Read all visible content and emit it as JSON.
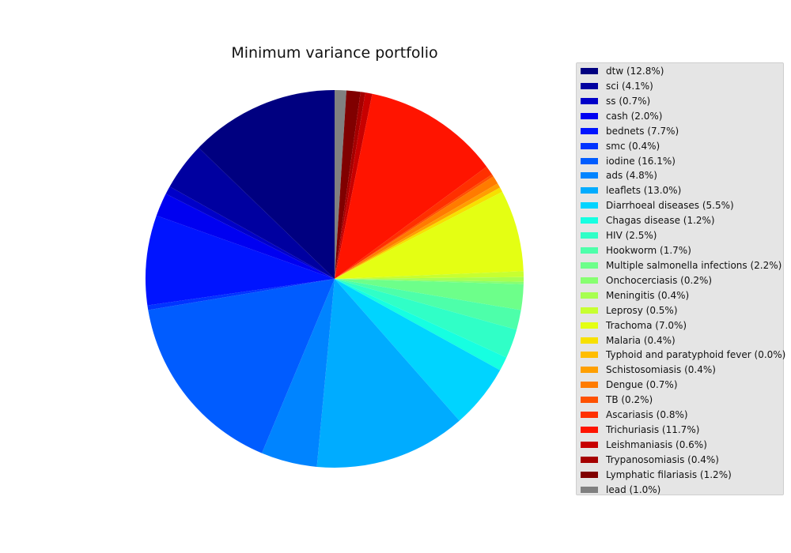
{
  "chart_data": {
    "type": "pie",
    "title": "Minimum variance portfolio",
    "start_angle_deg": 90,
    "direction": "clockwise",
    "legend_position": "right",
    "slices": [
      {
        "label": "lead (1.0%)",
        "value": 1.0,
        "color": "#808080"
      },
      {
        "label": "Lymphatic filariasis (1.2%)",
        "value": 1.2,
        "color": "#800000"
      },
      {
        "label": "Trypanosomiasis (0.4%)",
        "value": 0.4,
        "color": "#a50000"
      },
      {
        "label": "Leishmaniasis (0.6%)",
        "value": 0.6,
        "color": "#c70000"
      },
      {
        "label": "Trichuriasis (11.7%)",
        "value": 11.7,
        "color": "#ff1400"
      },
      {
        "label": "Ascariasis (0.8%)",
        "value": 0.8,
        "color": "#ff3000"
      },
      {
        "label": "TB (0.2%)",
        "value": 0.2,
        "color": "#ff5100"
      },
      {
        "label": "Dengue (0.7%)",
        "value": 0.7,
        "color": "#ff7b00"
      },
      {
        "label": "Schistosomiasis (0.4%)",
        "value": 0.4,
        "color": "#ff9f00"
      },
      {
        "label": "Typhoid and paratyphoid fever (0.0%)",
        "value": 0.0,
        "color": "#ffbd00"
      },
      {
        "label": "Malaria (0.4%)",
        "value": 0.4,
        "color": "#f7e000"
      },
      {
        "label": "Trachoma (7.0%)",
        "value": 7.0,
        "color": "#e4ff13"
      },
      {
        "label": "Leprosy (0.5%)",
        "value": 0.5,
        "color": "#c7ff30"
      },
      {
        "label": "Meningitis (0.4%)",
        "value": 0.4,
        "color": "#a7ff50"
      },
      {
        "label": "Onchocerciasis (0.2%)",
        "value": 0.2,
        "color": "#87ff70"
      },
      {
        "label": "Multiple salmonella infections (2.2%)",
        "value": 2.2,
        "color": "#6dff8a"
      },
      {
        "label": "Hookworm (1.7%)",
        "value": 1.7,
        "color": "#4dffaa"
      },
      {
        "label": "HIV (2.5%)",
        "value": 2.5,
        "color": "#30ffc7"
      },
      {
        "label": "Chagas disease (1.2%)",
        "value": 1.2,
        "color": "#16ffe1"
      },
      {
        "label": "Diarrhoeal diseases (5.5%)",
        "value": 5.5,
        "color": "#00d4ff"
      },
      {
        "label": "leaflets (13.0%)",
        "value": 13.0,
        "color": "#00acff"
      },
      {
        "label": "ads (4.8%)",
        "value": 4.8,
        "color": "#0084ff"
      },
      {
        "label": "iodine (16.1%)",
        "value": 16.1,
        "color": "#005cff"
      },
      {
        "label": "smc (0.4%)",
        "value": 0.4,
        "color": "#0034ff"
      },
      {
        "label": "bednets (7.7%)",
        "value": 7.7,
        "color": "#0014ff"
      },
      {
        "label": "cash (2.0%)",
        "value": 2.0,
        "color": "#0000f1"
      },
      {
        "label": "ss (0.7%)",
        "value": 0.7,
        "color": "#0000c8"
      },
      {
        "label": "sci (4.1%)",
        "value": 4.1,
        "color": "#0000a0"
      },
      {
        "label": "dtw (12.8%)",
        "value": 12.8,
        "color": "#000080"
      }
    ],
    "legend_order": [
      "dtw (12.8%)",
      "sci (4.1%)",
      "ss (0.7%)",
      "cash (2.0%)",
      "bednets (7.7%)",
      "smc (0.4%)",
      "iodine (16.1%)",
      "ads (4.8%)",
      "leaflets (13.0%)",
      "Diarrhoeal diseases (5.5%)",
      "Chagas disease (1.2%)",
      "HIV (2.5%)",
      "Hookworm (1.7%)",
      "Multiple salmonella infections (2.2%)",
      "Onchocerciasis (0.2%)",
      "Meningitis (0.4%)",
      "Leprosy (0.5%)",
      "Trachoma (7.0%)",
      "Malaria (0.4%)",
      "Typhoid and paratyphoid fever (0.0%)",
      "Schistosomiasis (0.4%)",
      "Dengue (0.7%)",
      "TB (0.2%)",
      "Ascariasis (0.8%)",
      "Trichuriasis (11.7%)",
      "Leishmaniasis (0.6%)",
      "Trypanosomiasis (0.4%)",
      "Lymphatic filariasis (1.2%)",
      "lead (1.0%)"
    ]
  }
}
